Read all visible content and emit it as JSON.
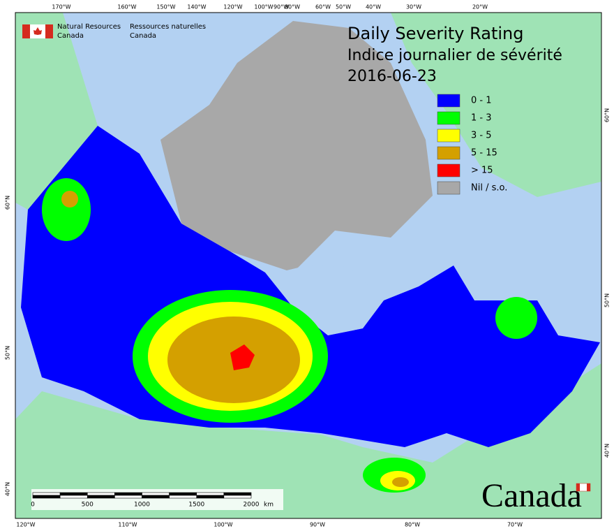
{
  "logo": {
    "en_line1": "Natural Resources",
    "en_line2": "Canada",
    "fr_line1": "Ressources naturelles",
    "fr_line2": "Canada"
  },
  "title": {
    "en": "Daily Severity Rating",
    "fr": "Indice journalier de sévérité",
    "date": "2016-06-23"
  },
  "legend": [
    {
      "label": "0 - 1",
      "color": "#0000ff"
    },
    {
      "label": "1 - 3",
      "color": "#00ff00"
    },
    {
      "label": "3 - 5",
      "color": "#ffff00"
    },
    {
      "label": "5 - 15",
      "color": "#d4a000"
    },
    {
      "label": "> 15",
      "color": "#ff0000"
    },
    {
      "label": "Nil / s.o.",
      "color": "#a8a8a8"
    }
  ],
  "graticule": {
    "top": [
      "170°W",
      "160°W",
      "150°W",
      "140°W",
      "120°W",
      "100°W",
      "90°W",
      "80°W",
      "60°W",
      "50°W",
      "40°W",
      "30°W",
      "20°W"
    ],
    "bottom": [
      "120°W",
      "110°W",
      "100°W",
      "90°W",
      "80°W",
      "70°W"
    ],
    "left": [
      "60°N",
      "50°N",
      "40°N"
    ],
    "right": [
      "60°N",
      "50°N",
      "40°N"
    ]
  },
  "scale_bar": {
    "labels": [
      "0",
      "500",
      "1000",
      "1500",
      "2000"
    ],
    "unit": "km"
  },
  "wordmark": "Canada"
}
